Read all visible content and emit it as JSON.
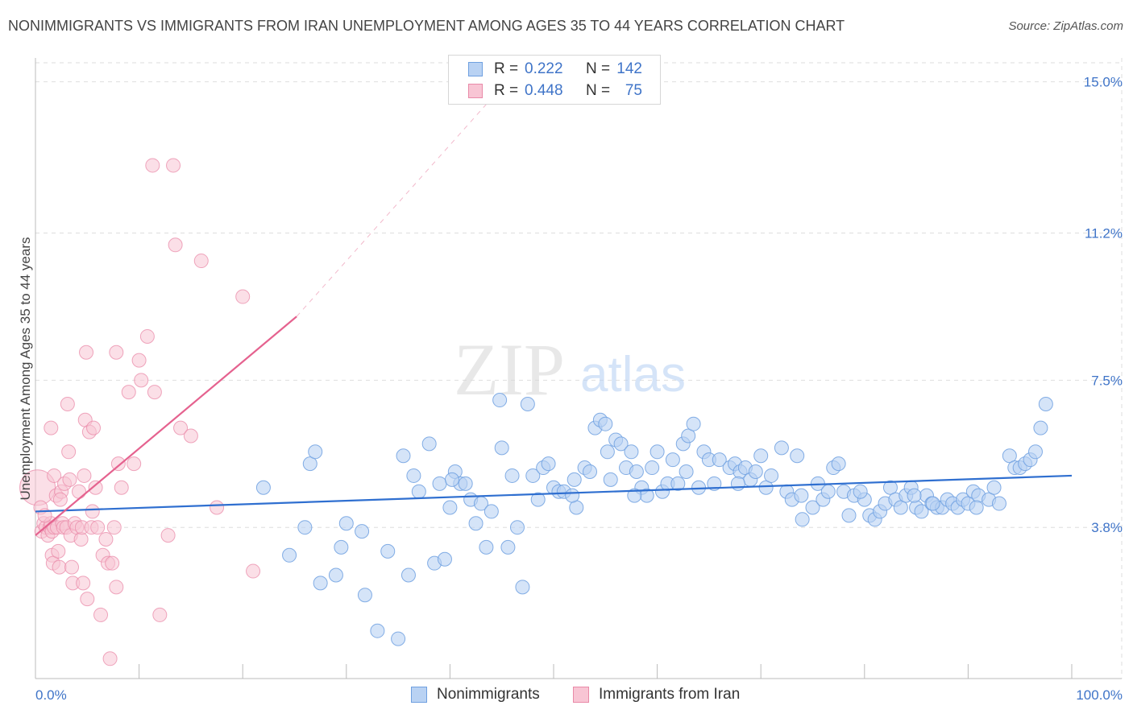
{
  "title": "NONIMMIGRANTS VS IMMIGRANTS FROM IRAN UNEMPLOYMENT AMONG AGES 35 TO 44 YEARS CORRELATION CHART",
  "source": "Source: ZipAtlas.com",
  "watermark": {
    "zip": "ZIP",
    "atlas": "atlas"
  },
  "legend": {
    "rows": [
      {
        "name": "Nonimmigrants",
        "r_label": "R =",
        "r_value": "0.222",
        "n_label": "N =",
        "n_value": "142",
        "color": "#6fa0e0",
        "fill": "#b9d2f3"
      },
      {
        "name": "Immigrants from Iran",
        "r_label": "R =",
        "r_value": "0.448",
        "n_label": "N =",
        "n_value": "75",
        "color": "#e98aa8",
        "fill": "#f8c5d4"
      }
    ]
  },
  "chart_data": {
    "type": "scatter",
    "title": "NONIMMIGRANTS VS IMMIGRANTS FROM IRAN UNEMPLOYMENT AMONG AGES 35 TO 44 YEARS CORRELATION CHART",
    "xlabel": "",
    "ylabel": "Unemployment Among Ages 35 to 44 years",
    "xlim": [
      0,
      100
    ],
    "ylim": [
      0,
      15.6
    ],
    "x_tick_labels": [
      "0.0%",
      "100.0%"
    ],
    "y_ticks": [
      3.8,
      7.5,
      11.2,
      15.0
    ],
    "y_tick_labels": [
      "3.8%",
      "7.5%",
      "11.2%",
      "15.0%"
    ],
    "grid": true,
    "series": [
      {
        "name": "Nonimmigrants",
        "color": "#6fa0e0",
        "fill": "#b9d2f3",
        "trend": {
          "x": [
            0,
            100
          ],
          "y": [
            4.2,
            5.1
          ]
        },
        "points": [
          [
            22,
            4.8
          ],
          [
            24.5,
            3.1
          ],
          [
            26,
            3.8
          ],
          [
            26.5,
            5.4
          ],
          [
            27,
            5.7
          ],
          [
            27.5,
            2.4
          ],
          [
            29,
            2.6
          ],
          [
            29.5,
            3.3
          ],
          [
            30,
            3.9
          ],
          [
            31.5,
            3.7
          ],
          [
            31.8,
            2.1
          ],
          [
            33,
            1.2
          ],
          [
            34,
            3.2
          ],
          [
            35,
            1.0
          ],
          [
            36,
            2.6
          ],
          [
            35.5,
            5.6
          ],
          [
            36.5,
            5.1
          ],
          [
            37,
            4.7
          ],
          [
            38,
            5.9
          ],
          [
            38.5,
            2.9
          ],
          [
            39,
            4.9
          ],
          [
            39.5,
            3.0
          ],
          [
            40,
            4.3
          ],
          [
            40.5,
            5.2
          ],
          [
            41,
            4.9
          ],
          [
            41.5,
            4.9
          ],
          [
            42,
            4.5
          ],
          [
            42.5,
            3.9
          ],
          [
            43,
            4.4
          ],
          [
            43.5,
            3.3
          ],
          [
            44,
            4.2
          ],
          [
            44.8,
            7.0
          ],
          [
            45,
            5.8
          ],
          [
            46,
            5.1
          ],
          [
            46.5,
            3.8
          ],
          [
            47,
            2.3
          ],
          [
            47.5,
            6.9
          ],
          [
            48,
            5.1
          ],
          [
            48.5,
            4.5
          ],
          [
            49,
            5.3
          ],
          [
            49.5,
            5.4
          ],
          [
            50,
            4.8
          ],
          [
            50.5,
            4.7
          ],
          [
            51,
            4.7
          ],
          [
            52,
            5.0
          ],
          [
            52.2,
            4.3
          ],
          [
            53,
            5.3
          ],
          [
            53.5,
            5.2
          ],
          [
            54,
            6.3
          ],
          [
            54.5,
            6.5
          ],
          [
            55,
            6.4
          ],
          [
            55.2,
            5.7
          ],
          [
            55.5,
            5.0
          ],
          [
            56,
            6.0
          ],
          [
            56.5,
            5.9
          ],
          [
            57,
            5.3
          ],
          [
            57.5,
            5.7
          ],
          [
            58,
            5.2
          ],
          [
            58.5,
            4.8
          ],
          [
            59,
            4.6
          ],
          [
            59.5,
            5.3
          ],
          [
            60,
            5.7
          ],
          [
            60.5,
            4.7
          ],
          [
            61,
            4.9
          ],
          [
            61.5,
            5.5
          ],
          [
            62,
            4.9
          ],
          [
            62.5,
            5.9
          ],
          [
            63,
            6.1
          ],
          [
            63.5,
            6.4
          ],
          [
            64,
            4.8
          ],
          [
            64.5,
            5.7
          ],
          [
            65,
            5.5
          ],
          [
            65.5,
            4.9
          ],
          [
            66,
            5.5
          ],
          [
            67,
            5.3
          ],
          [
            67.5,
            5.4
          ],
          [
            68,
            5.2
          ],
          [
            68.5,
            5.3
          ],
          [
            69,
            5.0
          ],
          [
            69.5,
            5.2
          ],
          [
            70,
            5.6
          ],
          [
            70.5,
            4.8
          ],
          [
            71,
            5.1
          ],
          [
            72,
            5.8
          ],
          [
            72.5,
            4.7
          ],
          [
            73,
            4.5
          ],
          [
            73.5,
            5.6
          ],
          [
            74,
            4.0
          ],
          [
            75,
            4.3
          ],
          [
            75.5,
            4.9
          ],
          [
            76,
            4.5
          ],
          [
            76.5,
            4.7
          ],
          [
            77,
            5.3
          ],
          [
            77.5,
            5.4
          ],
          [
            78,
            4.7
          ],
          [
            78.5,
            4.1
          ],
          [
            79,
            4.6
          ],
          [
            80,
            4.5
          ],
          [
            80.5,
            4.1
          ],
          [
            81,
            4.0
          ],
          [
            81.5,
            4.2
          ],
          [
            82,
            4.4
          ],
          [
            82.5,
            4.8
          ],
          [
            83,
            4.5
          ],
          [
            83.5,
            4.3
          ],
          [
            84,
            4.6
          ],
          [
            84.5,
            4.8
          ],
          [
            85,
            4.3
          ],
          [
            85.5,
            4.2
          ],
          [
            86,
            4.6
          ],
          [
            86.5,
            4.4
          ],
          [
            87,
            4.3
          ],
          [
            87.5,
            4.3
          ],
          [
            88,
            4.5
          ],
          [
            88.5,
            4.4
          ],
          [
            89,
            4.3
          ],
          [
            89.5,
            4.5
          ],
          [
            90,
            4.4
          ],
          [
            90.5,
            4.7
          ],
          [
            91,
            4.6
          ],
          [
            92,
            4.5
          ],
          [
            92.5,
            4.8
          ],
          [
            93,
            4.4
          ],
          [
            94,
            5.6
          ],
          [
            94.5,
            5.3
          ],
          [
            95,
            5.3
          ],
          [
            95.5,
            5.4
          ],
          [
            96,
            5.5
          ],
          [
            96.5,
            5.7
          ],
          [
            97,
            6.3
          ],
          [
            97.5,
            6.9
          ],
          [
            86.6,
            4.4
          ],
          [
            90.8,
            4.3
          ],
          [
            67.8,
            4.9
          ],
          [
            73.9,
            4.6
          ],
          [
            62.8,
            5.2
          ],
          [
            51.8,
            4.6
          ],
          [
            45.6,
            3.3
          ],
          [
            40.2,
            5.0
          ],
          [
            57.8,
            4.6
          ],
          [
            79.6,
            4.7
          ],
          [
            84.8,
            4.6
          ]
        ]
      },
      {
        "name": "Immigrants from Iran",
        "color": "#e98aa8",
        "fill": "#f8c5d4",
        "trend": {
          "x": [
            0,
            25.2
          ],
          "y": [
            3.6,
            9.1
          ]
        },
        "trend_extension": {
          "x": [
            25.2,
            47.5
          ],
          "y": [
            9.1,
            15.6
          ]
        },
        "points": [
          [
            0.2,
            4.8
          ],
          [
            0.5,
            4.3
          ],
          [
            0.6,
            3.7
          ],
          [
            0.8,
            3.9
          ],
          [
            1.0,
            3.8
          ],
          [
            1.2,
            3.6
          ],
          [
            1.4,
            3.8
          ],
          [
            1.5,
            3.9
          ],
          [
            1.6,
            3.7
          ],
          [
            1.8,
            3.8
          ],
          [
            1.5,
            6.3
          ],
          [
            1.6,
            3.1
          ],
          [
            1.7,
            2.9
          ],
          [
            1.8,
            5.1
          ],
          [
            2.0,
            4.6
          ],
          [
            2.1,
            3.8
          ],
          [
            2.2,
            3.2
          ],
          [
            2.3,
            2.8
          ],
          [
            2.5,
            4.7
          ],
          [
            2.6,
            3.9
          ],
          [
            2.7,
            3.8
          ],
          [
            2.8,
            4.9
          ],
          [
            3.0,
            3.8
          ],
          [
            3.1,
            6.9
          ],
          [
            3.2,
            5.7
          ],
          [
            3.3,
            5.0
          ],
          [
            3.4,
            3.6
          ],
          [
            3.5,
            2.8
          ],
          [
            3.6,
            2.4
          ],
          [
            3.8,
            3.9
          ],
          [
            4.0,
            3.8
          ],
          [
            4.2,
            4.7
          ],
          [
            4.4,
            3.5
          ],
          [
            4.5,
            3.8
          ],
          [
            4.6,
            2.4
          ],
          [
            4.7,
            5.1
          ],
          [
            4.8,
            6.5
          ],
          [
            4.9,
            8.2
          ],
          [
            5.0,
            2.0
          ],
          [
            5.2,
            6.2
          ],
          [
            5.4,
            3.8
          ],
          [
            5.5,
            4.2
          ],
          [
            5.6,
            6.3
          ],
          [
            5.8,
            4.8
          ],
          [
            6.0,
            3.8
          ],
          [
            6.3,
            1.6
          ],
          [
            6.5,
            3.1
          ],
          [
            6.8,
            3.5
          ],
          [
            7.0,
            2.9
          ],
          [
            7.2,
            0.5
          ],
          [
            7.4,
            2.9
          ],
          [
            7.6,
            3.8
          ],
          [
            7.8,
            2.3
          ],
          [
            7.8,
            8.2
          ],
          [
            8.0,
            5.4
          ],
          [
            8.3,
            4.8
          ],
          [
            9.0,
            7.2
          ],
          [
            9.5,
            5.4
          ],
          [
            10.0,
            8.0
          ],
          [
            10.2,
            7.5
          ],
          [
            10.8,
            8.6
          ],
          [
            11.3,
            12.9
          ],
          [
            11.5,
            7.2
          ],
          [
            12.0,
            1.6
          ],
          [
            12.8,
            3.6
          ],
          [
            13.3,
            12.9
          ],
          [
            13.5,
            10.9
          ],
          [
            14.0,
            6.3
          ],
          [
            15.0,
            6.1
          ],
          [
            16.0,
            10.5
          ],
          [
            17.5,
            4.3
          ],
          [
            20.0,
            9.6
          ],
          [
            21.0,
            2.7
          ],
          [
            0.9,
            4.1
          ],
          [
            2.4,
            4.5
          ]
        ]
      }
    ]
  }
}
